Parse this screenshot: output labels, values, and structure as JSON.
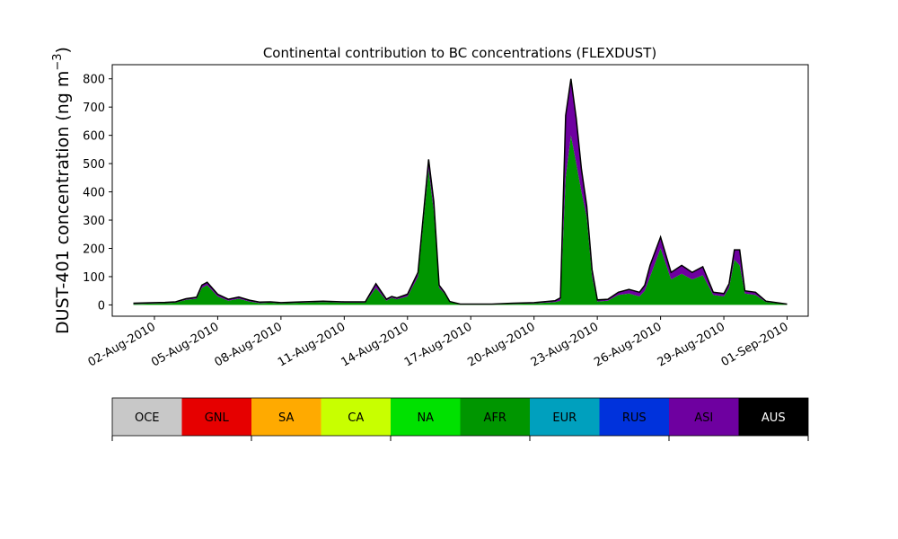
{
  "chart_data": {
    "type": "area",
    "stacked": true,
    "title": "Continental contribution to BC concentrations (FLEXDUST)",
    "ylabel_main": "DUST-401 concentration (ng m",
    "ylabel_sup": "−3",
    "ylabel_close": ")",
    "xlabel": "",
    "ylim": [
      -40,
      850
    ],
    "y_ticks": [
      0,
      100,
      200,
      300,
      400,
      500,
      600,
      700,
      800
    ],
    "x_date_range": [
      "2010-07-31",
      "2010-09-02"
    ],
    "x_ticks": [
      "02-Aug-2010",
      "05-Aug-2010",
      "08-Aug-2010",
      "11-Aug-2010",
      "14-Aug-2010",
      "17-Aug-2010",
      "20-Aug-2010",
      "23-Aug-2010",
      "26-Aug-2010",
      "29-Aug-2010",
      "01-Sep-2010"
    ],
    "grid": false,
    "legend": [
      {
        "name": "OCE",
        "color": "#c8c8c8",
        "text_color": "#000000"
      },
      {
        "name": "GNL",
        "color": "#e60000",
        "text_color": "#000000"
      },
      {
        "name": "SA",
        "color": "#ffaa00",
        "text_color": "#000000"
      },
      {
        "name": "CA",
        "color": "#c8ff00",
        "text_color": "#000000"
      },
      {
        "name": "NA",
        "color": "#00e100",
        "text_color": "#000000"
      },
      {
        "name": "AFR",
        "color": "#009600",
        "text_color": "#000000"
      },
      {
        "name": "EUR",
        "color": "#00a0be",
        "text_color": "#000000"
      },
      {
        "name": "RUS",
        "color": "#0032dc",
        "text_color": "#000000"
      },
      {
        "name": "ASI",
        "color": "#6e00a0",
        "text_color": "#000000"
      },
      {
        "name": "AUS",
        "color": "#000000",
        "text_color": "#ffffff"
      }
    ],
    "series_time": [
      "2010-08-01",
      "2010-08-02",
      "2010-08-02T12:00",
      "2010-08-03",
      "2010-08-03T12:00",
      "2010-08-04",
      "2010-08-04T06:00",
      "2010-08-04T12:00",
      "2010-08-05",
      "2010-08-05T12:00",
      "2010-08-06",
      "2010-08-06T12:00",
      "2010-08-07",
      "2010-08-07T12:00",
      "2010-08-08",
      "2010-08-09",
      "2010-08-10",
      "2010-08-11",
      "2010-08-12",
      "2010-08-12T12:00",
      "2010-08-13",
      "2010-08-13T06:00",
      "2010-08-13T12:00",
      "2010-08-14",
      "2010-08-14T12:00",
      "2010-08-15",
      "2010-08-15T06:00",
      "2010-08-15T12:00",
      "2010-08-15T18:00",
      "2010-08-16",
      "2010-08-16T12:00",
      "2010-08-17",
      "2010-08-18",
      "2010-08-19",
      "2010-08-20",
      "2010-08-21",
      "2010-08-21T06:00",
      "2010-08-21T12:00",
      "2010-08-21T18:00",
      "2010-08-22",
      "2010-08-22T06:00",
      "2010-08-22T12:00",
      "2010-08-22T18:00",
      "2010-08-23",
      "2010-08-23T12:00",
      "2010-08-24",
      "2010-08-24T12:00",
      "2010-08-25",
      "2010-08-25T06:00",
      "2010-08-25T12:00",
      "2010-08-26",
      "2010-08-26T12:00",
      "2010-08-27",
      "2010-08-27T12:00",
      "2010-08-28",
      "2010-08-28T12:00",
      "2010-08-29",
      "2010-08-29T06:00",
      "2010-08-29T12:00",
      "2010-08-29T18:00",
      "2010-08-30",
      "2010-08-30T12:00",
      "2010-08-31",
      "2010-09-01"
    ],
    "series": [
      {
        "name": "AFR",
        "values": [
          3,
          5,
          6,
          8,
          18,
          22,
          60,
          70,
          30,
          15,
          22,
          12,
          6,
          8,
          5,
          8,
          10,
          8,
          8,
          60,
          15,
          25,
          20,
          30,
          100,
          480,
          330,
          60,
          40,
          10,
          2,
          2,
          2,
          4,
          5,
          10,
          15,
          450,
          600,
          500,
          400,
          310,
          100,
          12,
          15,
          35,
          40,
          30,
          50,
          100,
          200,
          90,
          110,
          90,
          105,
          35,
          30,
          60,
          160,
          140,
          40,
          35,
          10,
          2
        ]
      },
      {
        "name": "ASI",
        "values": [
          3,
          3,
          3,
          3,
          4,
          5,
          10,
          10,
          8,
          5,
          6,
          5,
          4,
          3,
          3,
          3,
          3,
          3,
          3,
          15,
          5,
          5,
          5,
          8,
          15,
          35,
          35,
          10,
          5,
          2,
          1,
          1,
          1,
          2,
          3,
          5,
          10,
          220,
          200,
          160,
          80,
          40,
          25,
          6,
          5,
          10,
          15,
          15,
          20,
          40,
          40,
          25,
          30,
          25,
          30,
          10,
          10,
          15,
          35,
          55,
          10,
          10,
          3,
          1
        ]
      }
    ]
  }
}
